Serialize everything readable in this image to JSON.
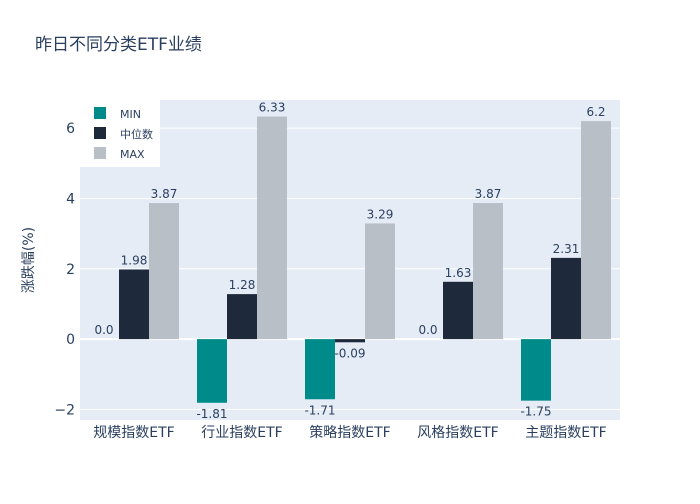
{
  "chart_data": {
    "type": "bar",
    "title": "昨日不同分类ETF业绩",
    "ylabel": "涨跌幅(%)",
    "xlabel": "",
    "categories": [
      "规模指数ETF",
      "行业指数ETF",
      "策略指数ETF",
      "风格指数ETF",
      "主题指数ETF"
    ],
    "series": [
      {
        "name": "MIN",
        "values": [
          0.0,
          -1.81,
          -1.71,
          0.0,
          -1.75
        ],
        "labels": [
          "0.0",
          "-1.81",
          "-1.71",
          "0.0",
          "-1.75"
        ],
        "color": "#008b8b"
      },
      {
        "name": "中位数",
        "values": [
          1.98,
          1.28,
          -0.09,
          1.63,
          2.31
        ],
        "labels": [
          "1.98",
          "1.28",
          "-0.09",
          "1.63",
          "2.31"
        ],
        "color": "#1e293b"
      },
      {
        "name": "MAX",
        "values": [
          3.87,
          6.33,
          3.29,
          3.87,
          6.2
        ],
        "labels": [
          "3.87",
          "6.33",
          "3.29",
          "3.87",
          "6.2"
        ],
        "color": "#b9bfc6"
      }
    ],
    "ylim": [
      -2.3,
      6.8
    ],
    "yticks": [
      -2,
      0,
      2,
      4,
      6
    ],
    "ytick_labels": [
      "−2",
      "0",
      "2",
      "4",
      "6"
    ],
    "grid": true,
    "legend_position": "top-left",
    "plot_bg": "#e5ecf6"
  }
}
